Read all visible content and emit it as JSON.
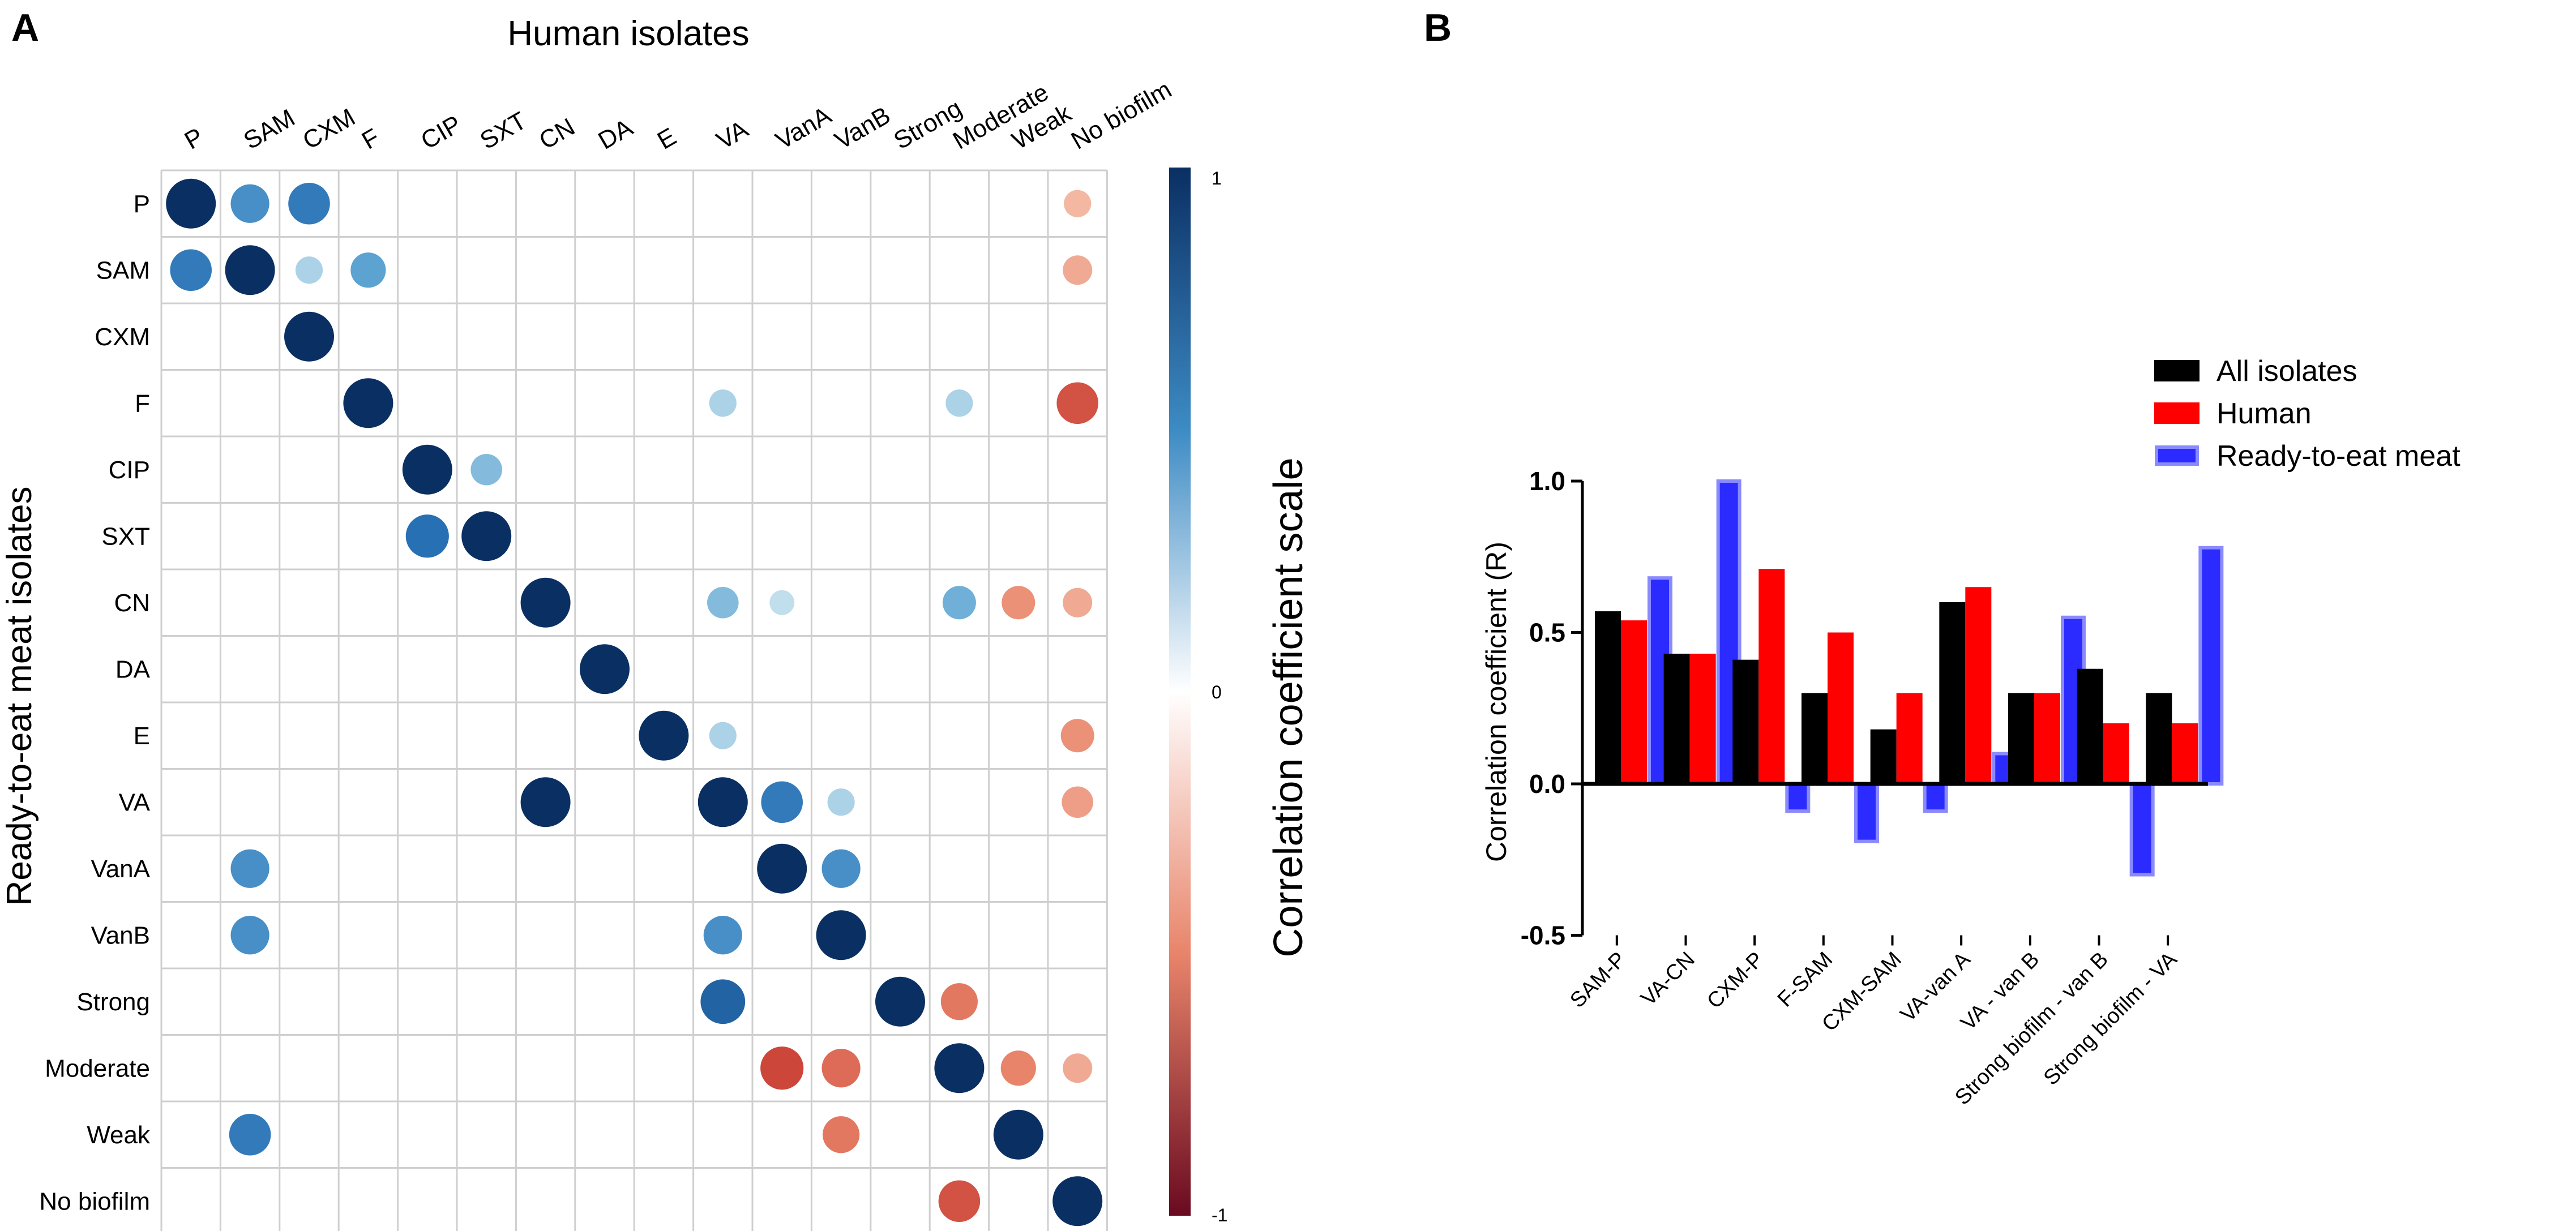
{
  "panel_a_label": "A",
  "panel_b_label": "B",
  "chart_data": [
    {
      "type": "heatmap",
      "title": "Human isolates",
      "ylabel": "Ready-to-eat meat isolates",
      "scale_label": "Correlation coefficient scale",
      "scale_ticks": [
        "1",
        "0",
        "-1"
      ],
      "scale_range": [
        -1,
        1
      ],
      "columns": [
        "P",
        "SAM",
        "CXM",
        "F",
        "CIP",
        "SXT",
        "CN",
        "DA",
        "E",
        "VA",
        "VanA",
        "VanB",
        "Strong",
        "Moderate",
        "Weak",
        "No biofilm"
      ],
      "rows": [
        "P",
        "SAM",
        "CXM",
        "F",
        "CIP",
        "SXT",
        "CN",
        "DA",
        "E",
        "VA",
        "VanA",
        "VanB",
        "Strong",
        "Moderate",
        "Weak",
        "No biofilm"
      ],
      "cells": [
        {
          "row": 0,
          "col": 0,
          "value": 1.0
        },
        {
          "row": 0,
          "col": 1,
          "value": 0.6
        },
        {
          "row": 0,
          "col": 2,
          "value": 0.7
        },
        {
          "row": 0,
          "col": 15,
          "value": -0.3
        },
        {
          "row": 1,
          "col": 0,
          "value": 0.7
        },
        {
          "row": 1,
          "col": 1,
          "value": 1.0
        },
        {
          "row": 1,
          "col": 2,
          "value": 0.3
        },
        {
          "row": 1,
          "col": 3,
          "value": 0.5
        },
        {
          "row": 1,
          "col": 15,
          "value": -0.35
        },
        {
          "row": 2,
          "col": 2,
          "value": 1.0
        },
        {
          "row": 3,
          "col": 3,
          "value": 1.0
        },
        {
          "row": 3,
          "col": 9,
          "value": 0.3
        },
        {
          "row": 3,
          "col": 13,
          "value": 0.3
        },
        {
          "row": 3,
          "col": 15,
          "value": -0.7
        },
        {
          "row": 4,
          "col": 4,
          "value": 1.0
        },
        {
          "row": 4,
          "col": 5,
          "value": 0.4
        },
        {
          "row": 5,
          "col": 4,
          "value": 0.75
        },
        {
          "row": 5,
          "col": 5,
          "value": 1.0
        },
        {
          "row": 6,
          "col": 6,
          "value": 1.0
        },
        {
          "row": 6,
          "col": 9,
          "value": 0.4
        },
        {
          "row": 6,
          "col": 10,
          "value": 0.25
        },
        {
          "row": 6,
          "col": 13,
          "value": 0.45
        },
        {
          "row": 6,
          "col": 14,
          "value": -0.45
        },
        {
          "row": 6,
          "col": 15,
          "value": -0.35
        },
        {
          "row": 7,
          "col": 7,
          "value": 1.0
        },
        {
          "row": 8,
          "col": 8,
          "value": 1.0
        },
        {
          "row": 8,
          "col": 9,
          "value": 0.3
        },
        {
          "row": 8,
          "col": 15,
          "value": -0.45
        },
        {
          "row": 9,
          "col": 6,
          "value": 1.0
        },
        {
          "row": 9,
          "col": 9,
          "value": 1.0
        },
        {
          "row": 9,
          "col": 10,
          "value": 0.7
        },
        {
          "row": 9,
          "col": 11,
          "value": 0.3
        },
        {
          "row": 9,
          "col": 15,
          "value": -0.4
        },
        {
          "row": 10,
          "col": 1,
          "value": 0.6
        },
        {
          "row": 10,
          "col": 10,
          "value": 1.0
        },
        {
          "row": 10,
          "col": 11,
          "value": 0.6
        },
        {
          "row": 11,
          "col": 1,
          "value": 0.6
        },
        {
          "row": 11,
          "col": 9,
          "value": 0.6
        },
        {
          "row": 11,
          "col": 11,
          "value": 1.0
        },
        {
          "row": 12,
          "col": 9,
          "value": 0.8
        },
        {
          "row": 12,
          "col": 12,
          "value": 1.0
        },
        {
          "row": 12,
          "col": 13,
          "value": -0.55
        },
        {
          "row": 13,
          "col": 10,
          "value": -0.75
        },
        {
          "row": 13,
          "col": 11,
          "value": -0.6
        },
        {
          "row": 13,
          "col": 13,
          "value": 1.0
        },
        {
          "row": 13,
          "col": 14,
          "value": -0.5
        },
        {
          "row": 13,
          "col": 15,
          "value": -0.35
        },
        {
          "row": 14,
          "col": 1,
          "value": 0.7
        },
        {
          "row": 14,
          "col": 11,
          "value": -0.55
        },
        {
          "row": 14,
          "col": 14,
          "value": 1.0
        },
        {
          "row": 15,
          "col": 13,
          "value": -0.7
        },
        {
          "row": 15,
          "col": 15,
          "value": 1.0
        }
      ]
    },
    {
      "type": "bar",
      "ylabel": "Correlation coefficient (R)",
      "ylim": [
        -0.5,
        1.0
      ],
      "yticks": [
        "1.0",
        "0.5",
        "0.0",
        "-0.5"
      ],
      "legend_position": "top-right",
      "categories": [
        "SAM-P",
        "VA-CN",
        "CXM-P",
        "F-SAM",
        "CXM-SAM",
        "VA-van A",
        "VA - van B",
        "Strong biofilm - van B",
        "Strong biofilm - VA"
      ],
      "series": [
        {
          "name": "All isolates",
          "color": "#000000",
          "values": [
            0.57,
            0.43,
            0.41,
            0.3,
            0.18,
            0.6,
            0.3,
            0.38,
            0.3
          ]
        },
        {
          "name": "Human",
          "color": "#ff0000",
          "values": [
            0.54,
            0.43,
            0.71,
            0.5,
            0.3,
            0.65,
            0.3,
            0.2,
            0.2
          ]
        },
        {
          "name": "Ready-to-eat meat",
          "color": "#1a1aff",
          "values": [
            0.68,
            1.0,
            -0.09,
            -0.19,
            -0.09,
            0.1,
            0.55,
            -0.3,
            0.78
          ]
        }
      ]
    }
  ]
}
